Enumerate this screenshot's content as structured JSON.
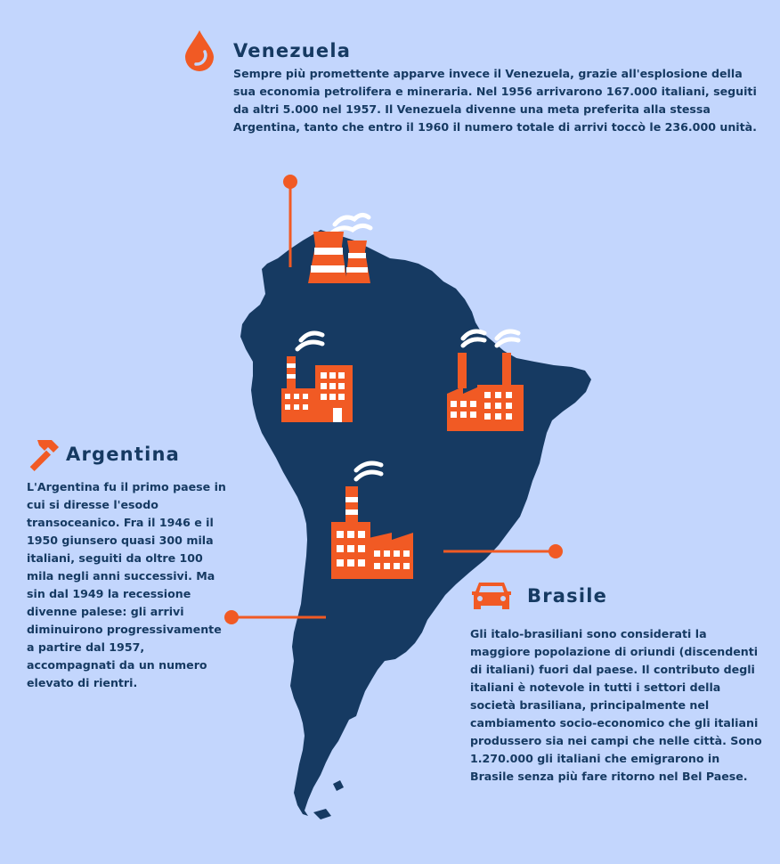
{
  "colors": {
    "background": "#c3d6fd",
    "map": "#163a62",
    "accent": "#f15a24",
    "text": "#163a62"
  },
  "venezuela": {
    "title": "Venezuela",
    "icon": "drop-icon",
    "text": "Sempre più promettente apparve invece il Venezuela, grazie all'esplosione della sua economia petrolifera e mineraria. Nel 1956 arrivarono  167.000 italiani, seguiti da altri 5.000 nel 1957. Il Venezuela divenne una meta preferita alla stessa Argentina, tanto che entro il 1960 il numero totale di arrivi toccò le 236.000 unità."
  },
  "argentina": {
    "title": "Argentina",
    "icon": "hammer-icon",
    "text": "L'Argentina fu il primo paese in cui si diresse l'esodo transoceanico. Fra il 1946 e il 1950 giunsero quasi 300 mila italiani, seguiti da oltre 100 mila negli anni successivi. Ma sin dal 1949 la recessione divenne palese: gli arrivi diminuirono progressivamente a partire dal 1957, accompagnati da un numero elevato di rientri."
  },
  "brasile": {
    "title": "Brasile",
    "icon": "car-icon",
    "text": "Gli italo-brasiliani sono considerati la maggiore popolazione di oriundi (discendenti di italiani) fuori dal paese. Il contributo degli italiani è notevole in tutti i settori della società brasiliana, principalmente nel cambiamento socio-economico che gli italiani produssero sia nei campi che nelle città. Sono 1.270.000 gli italiani che emigrarono in Brasile senza più fare ritorno nel Bel Paese."
  },
  "map": {
    "region": "south-america-map",
    "icons": [
      "cooling-tower-icon",
      "factory-icon",
      "factory-icon",
      "factory-icon"
    ]
  }
}
